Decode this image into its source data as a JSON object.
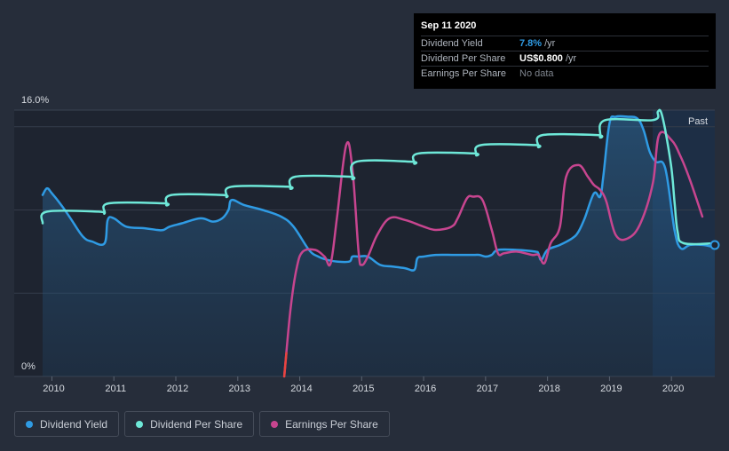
{
  "tooltip": {
    "date": "Sep 11 2020",
    "rows": [
      {
        "label": "Dividend Yield",
        "value": "7.8%",
        "unit": "/yr",
        "color": "#2f9be4"
      },
      {
        "label": "Dividend Per Share",
        "value": "US$0.800",
        "unit": "/yr",
        "color": "#ffffff"
      },
      {
        "label": "Earnings Per Share",
        "value": "No data",
        "unit": "",
        "color": "#7d838c"
      }
    ]
  },
  "legend": [
    {
      "label": "Dividend Yield",
      "color": "#2f9be4"
    },
    {
      "label": "Dividend Per Share",
      "color": "#6ee8d8"
    },
    {
      "label": "Earnings Per Share",
      "color": "#c7458f"
    }
  ],
  "chart_data": {
    "type": "line",
    "ylabel_top": "16.0%",
    "ylabel_bottom": "0%",
    "past_label": "Past",
    "x_ticks": [
      "2010",
      "2011",
      "2012",
      "2013",
      "2014",
      "2015",
      "2016",
      "2017",
      "2018",
      "2019",
      "2020"
    ],
    "x_range": [
      2009.85,
      2020.7
    ],
    "y_range": [
      0,
      16
    ],
    "series": [
      {
        "name": "Dividend Yield",
        "color": "#2f9be4",
        "area": true,
        "x": [
          2009.85,
          2009.92,
          2010.0,
          2010.15,
          2010.3,
          2010.5,
          2010.65,
          2010.85,
          2010.9,
          2011.0,
          2011.2,
          2011.5,
          2011.7,
          2011.8,
          2011.9,
          2012.1,
          2012.4,
          2012.6,
          2012.75,
          2012.85,
          2012.9,
          2013.1,
          2013.4,
          2013.7,
          2013.9,
          2014.15,
          2014.3,
          2014.45,
          2014.6,
          2014.8,
          2014.85,
          2014.95,
          2015.1,
          2015.3,
          2015.5,
          2015.7,
          2015.85,
          2015.9,
          2016.0,
          2016.2,
          2016.5,
          2016.8,
          2016.9,
          2017.0,
          2017.1,
          2017.2,
          2017.5,
          2017.8,
          2017.85,
          2017.9,
          2018.0,
          2018.2,
          2018.4,
          2018.5,
          2018.6,
          2018.75,
          2018.85,
          2018.9,
          2019.0,
          2019.1,
          2019.3,
          2019.45,
          2019.55,
          2019.65,
          2019.75,
          2019.9,
          2020.05,
          2020.15,
          2020.3,
          2020.5,
          2020.65,
          2020.7
        ],
        "y": [
          10.9,
          11.3,
          11.0,
          10.3,
          9.5,
          8.4,
          8.1,
          8.0,
          9.4,
          9.5,
          9.0,
          8.9,
          8.8,
          8.8,
          9.0,
          9.2,
          9.5,
          9.3,
          9.5,
          10.0,
          10.6,
          10.3,
          10.0,
          9.6,
          9.0,
          7.6,
          7.2,
          7.0,
          6.9,
          6.9,
          7.2,
          7.2,
          7.2,
          6.7,
          6.6,
          6.5,
          6.4,
          7.1,
          7.2,
          7.3,
          7.3,
          7.3,
          7.3,
          7.2,
          7.3,
          7.6,
          7.6,
          7.5,
          7.4,
          7.0,
          7.6,
          7.9,
          8.3,
          8.7,
          9.5,
          11.0,
          10.8,
          12.0,
          15.2,
          15.6,
          15.6,
          15.5,
          14.8,
          13.5,
          12.9,
          12.5,
          8.8,
          7.7,
          7.9,
          7.9,
          7.8,
          7.8
        ]
      },
      {
        "name": "Dividend Per Share",
        "color": "#6ee8d8",
        "area": false,
        "x": [
          2009.85,
          2009.92,
          2010.75,
          2010.85,
          2010.92,
          2011.8,
          2011.85,
          2011.93,
          2012.75,
          2012.82,
          2012.9,
          2013.8,
          2013.85,
          2013.93,
          2014.8,
          2014.85,
          2014.92,
          2015.8,
          2015.85,
          2015.92,
          2016.8,
          2016.85,
          2016.93,
          2017.8,
          2017.85,
          2017.92,
          2018.8,
          2018.85,
          2018.93,
          2019.7,
          2019.78,
          2019.83,
          2019.9,
          2020.0,
          2020.05,
          2020.1,
          2020.2,
          2020.7
        ],
        "y": [
          9.2,
          9.9,
          9.9,
          9.8,
          10.4,
          10.4,
          10.3,
          10.9,
          10.9,
          10.8,
          11.4,
          11.4,
          11.3,
          12.0,
          12.0,
          11.9,
          12.9,
          12.9,
          12.8,
          13.4,
          13.4,
          13.3,
          13.9,
          13.9,
          13.8,
          14.5,
          14.5,
          14.4,
          15.4,
          15.4,
          15.9,
          15.9,
          14.8,
          12.5,
          10.5,
          8.7,
          8.0,
          8.0
        ]
      },
      {
        "name": "Earnings Per Share",
        "color": "#c7458f",
        "area": false,
        "negative_color": "#e8443f",
        "x": [
          2013.75,
          2013.85,
          2013.95,
          2014.05,
          2014.25,
          2014.4,
          2014.5,
          2014.6,
          2014.75,
          2014.85,
          2014.95,
          2015.0,
          2015.1,
          2015.25,
          2015.45,
          2015.7,
          2016.0,
          2016.2,
          2016.45,
          2016.55,
          2016.7,
          2016.8,
          2016.95,
          2017.1,
          2017.2,
          2017.3,
          2017.5,
          2017.75,
          2017.85,
          2017.95,
          2018.05,
          2018.2,
          2018.3,
          2018.5,
          2018.65,
          2018.75,
          2018.85,
          2018.95,
          2019.1,
          2019.3,
          2019.5,
          2019.7,
          2019.8,
          2020.0,
          2020.15,
          2020.3,
          2020.5
        ],
        "y": [
          0.0,
          4.0,
          6.5,
          7.5,
          7.6,
          7.2,
          6.8,
          9.5,
          13.9,
          12.5,
          7.5,
          6.7,
          7.2,
          8.5,
          9.5,
          9.4,
          9.0,
          8.8,
          9.0,
          9.5,
          10.7,
          10.8,
          10.6,
          8.8,
          7.4,
          7.4,
          7.5,
          7.3,
          7.3,
          6.8,
          8.0,
          9.0,
          12.0,
          12.7,
          12.0,
          11.5,
          11.2,
          10.5,
          8.5,
          8.3,
          9.2,
          11.6,
          14.5,
          14.2,
          13.2,
          11.8,
          9.6
        ]
      }
    ]
  }
}
